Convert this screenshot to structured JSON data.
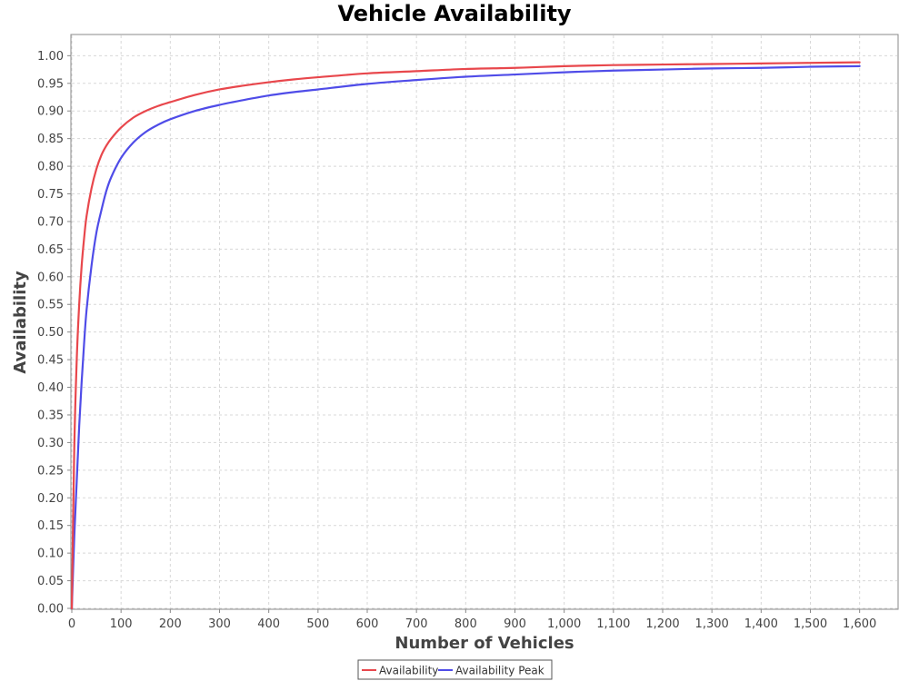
{
  "chart_data": {
    "type": "line",
    "title": "Vehicle Availability",
    "xlabel": "Number of Vehicles",
    "ylabel": "Availability",
    "xlim": [
      0,
      1680
    ],
    "ylim": [
      0,
      1.04
    ],
    "x_ticks": [
      0,
      100,
      200,
      300,
      400,
      500,
      600,
      700,
      800,
      900,
      1000,
      1100,
      1200,
      1300,
      1400,
      1500,
      1600
    ],
    "x_tick_labels": [
      "0",
      "100",
      "200",
      "300",
      "400",
      "500",
      "600",
      "700",
      "800",
      "900",
      "1,000",
      "1,100",
      "1,200",
      "1,300",
      "1,400",
      "1,500",
      "1,600"
    ],
    "y_ticks": [
      0,
      0.05,
      0.1,
      0.15,
      0.2,
      0.25,
      0.3,
      0.35,
      0.4,
      0.45,
      0.5,
      0.55,
      0.6,
      0.65,
      0.7,
      0.75,
      0.8,
      0.85,
      0.9,
      0.95,
      1.0
    ],
    "y_tick_labels": [
      "0.00",
      "0.05",
      "0.10",
      "0.15",
      "0.20",
      "0.25",
      "0.30",
      "0.35",
      "0.40",
      "0.45",
      "0.50",
      "0.55",
      "0.60",
      "0.65",
      "0.70",
      "0.75",
      "0.80",
      "0.85",
      "0.90",
      "0.95",
      "1.00"
    ],
    "grid": true,
    "legend_position": "bottom",
    "x": [
      0,
      5,
      10,
      15,
      20,
      25,
      30,
      40,
      50,
      60,
      70,
      80,
      100,
      125,
      150,
      175,
      200,
      250,
      300,
      350,
      400,
      450,
      500,
      600,
      700,
      800,
      900,
      1000,
      1100,
      1200,
      1300,
      1400,
      1500,
      1600
    ],
    "series": [
      {
        "name": "Availability",
        "color": "#e8474c",
        "values": [
          0.0,
          0.29,
          0.45,
          0.55,
          0.62,
          0.67,
          0.71,
          0.76,
          0.795,
          0.82,
          0.837,
          0.85,
          0.87,
          0.888,
          0.9,
          0.909,
          0.916,
          0.929,
          0.939,
          0.946,
          0.952,
          0.957,
          0.961,
          0.968,
          0.972,
          0.976,
          0.978,
          0.981,
          0.983,
          0.984,
          0.985,
          0.986,
          0.987,
          0.988
        ]
      },
      {
        "name": "Availability Peak",
        "color": "#4f4ce8",
        "values": [
          0.0,
          0.13,
          0.23,
          0.33,
          0.41,
          0.48,
          0.54,
          0.62,
          0.68,
          0.72,
          0.755,
          0.78,
          0.815,
          0.843,
          0.862,
          0.875,
          0.885,
          0.9,
          0.911,
          0.92,
          0.928,
          0.934,
          0.939,
          0.949,
          0.956,
          0.962,
          0.966,
          0.97,
          0.973,
          0.975,
          0.977,
          0.978,
          0.98,
          0.981
        ]
      }
    ]
  }
}
